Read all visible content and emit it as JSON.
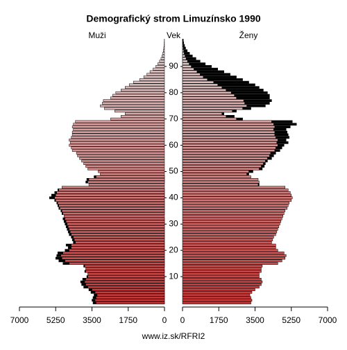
{
  "chart_data": {
    "type": "pyramid",
    "title": "Demografický strom Limuzínsko 1990",
    "left_label": "Muži",
    "center_label": "Vek",
    "right_label": "Ženy",
    "footer": "www.iz.sk/RFRI2",
    "ages": [
      0,
      1,
      2,
      3,
      4,
      5,
      6,
      7,
      8,
      9,
      10,
      11,
      12,
      13,
      14,
      15,
      16,
      17,
      18,
      19,
      20,
      21,
      22,
      23,
      24,
      25,
      26,
      27,
      28,
      29,
      30,
      31,
      32,
      33,
      34,
      35,
      36,
      37,
      38,
      39,
      40,
      41,
      42,
      43,
      44,
      45,
      46,
      47,
      48,
      49,
      50,
      51,
      52,
      53,
      54,
      55,
      56,
      57,
      58,
      59,
      60,
      61,
      62,
      63,
      64,
      65,
      66,
      67,
      68,
      69,
      70,
      71,
      72,
      73,
      74,
      75,
      76,
      77,
      78,
      79,
      80,
      81,
      82,
      83,
      84,
      85,
      86,
      87,
      88,
      89,
      90,
      91,
      92,
      93,
      94,
      95,
      96,
      97,
      98,
      99,
      100
    ],
    "ylim": [
      0,
      100
    ],
    "yticks": [
      10,
      20,
      30,
      40,
      50,
      60,
      70,
      80,
      90
    ],
    "xlim": [
      0,
      7000
    ],
    "xticks": [
      0,
      1750,
      3500,
      5250,
      7000
    ],
    "excess_color": "#000000",
    "series": [
      {
        "name": "Muži",
        "color": "#cc3333",
        "values": [
          3450,
          3500,
          3450,
          3400,
          3550,
          3650,
          3900,
          4000,
          4050,
          3950,
          3750,
          3700,
          3850,
          3800,
          3900,
          4900,
          5100,
          5250,
          5200,
          5150,
          4800,
          4650,
          4750,
          4400,
          4450,
          4500,
          4600,
          4650,
          4700,
          4750,
          4800,
          4850,
          4900,
          4850,
          4950,
          5000,
          5100,
          5150,
          5200,
          5300,
          5550,
          5450,
          5300,
          5150,
          4950,
          3650,
          3800,
          3750,
          3400,
          3100,
          3200,
          3700,
          3800,
          3900,
          4000,
          4100,
          4200,
          4250,
          4450,
          4500,
          4600,
          4550,
          4600,
          4500,
          4450,
          4450,
          4400,
          4450,
          4400,
          4300,
          2600,
          2100,
          1900,
          2400,
          2900,
          3100,
          3000,
          2950,
          2600,
          2500,
          2350,
          2100,
          1900,
          1700,
          1500,
          1200,
          1000,
          850,
          700,
          550,
          420,
          320,
          240,
          170,
          120,
          80,
          55,
          35,
          20,
          12,
          8
        ]
      },
      {
        "name": "Ženy",
        "color": "#cc3333",
        "values": [
          3300,
          3350,
          3300,
          3250,
          3350,
          3500,
          3700,
          3800,
          3850,
          3800,
          3700,
          3700,
          3800,
          3800,
          3850,
          4600,
          4800,
          4950,
          5000,
          4900,
          4600,
          4500,
          4500,
          4300,
          4350,
          4400,
          4500,
          4550,
          4600,
          4650,
          4700,
          4750,
          4800,
          4850,
          4900,
          4950,
          5050,
          5100,
          5150,
          5250,
          5300,
          5250,
          5200,
          5100,
          4950,
          3700,
          3700,
          3650,
          3300,
          3200,
          3400,
          3850,
          3950,
          4000,
          4100,
          4300,
          4400,
          4500,
          4700,
          4800,
          4900,
          5100,
          5000,
          5150,
          5100,
          5050,
          5000,
          5200,
          5500,
          5300,
          2900,
          2500,
          2000,
          2600,
          3300,
          4000,
          4200,
          4300,
          4200,
          4200,
          4100,
          3900,
          3700,
          3500,
          3200,
          2900,
          2600,
          2300,
          2000,
          1700,
          1400,
          1100,
          850,
          650,
          480,
          340,
          230,
          150,
          100,
          60,
          40
        ]
      }
    ]
  }
}
